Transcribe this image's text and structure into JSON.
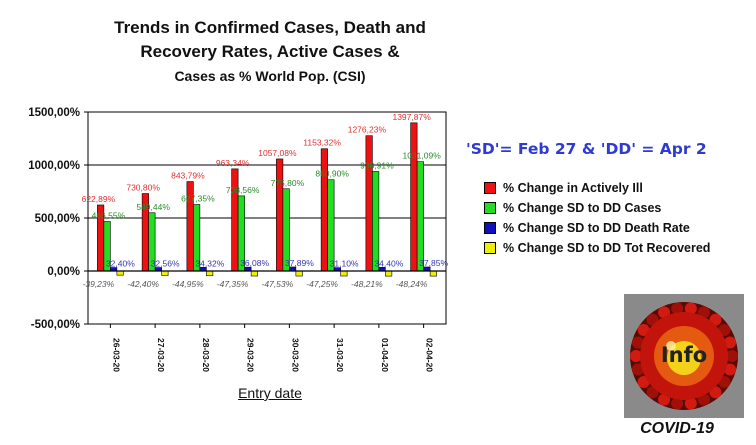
{
  "title": {
    "line1": "Trends in Confirmed Cases, Death and",
    "line2": "Recovery Rates, Active Cases &",
    "line3": "Cases as % World Pop. (CSI)"
  },
  "note": "'SD'= Feb 27 & 'DD' = Apr 2",
  "logo": {
    "text": "Info",
    "caption": "COVID-19"
  },
  "colors": {
    "active": "#ee1111",
    "cases": "#22dd22",
    "death": "#1111bb",
    "recovered": "#eeee00",
    "note": "#2e3bd0"
  },
  "chart_data": {
    "type": "bar",
    "xlabel": "Entry date",
    "ylabel": "",
    "ylim": [
      -500,
      1500
    ],
    "yticks": [
      -500,
      0,
      500,
      1000,
      1500
    ],
    "ytick_labels": [
      "-500,00%",
      "0,00%",
      "500,00%",
      "1000,00%",
      "1500,00%"
    ],
    "grid": true,
    "legend_position": "right",
    "categories": [
      "26-03-20",
      "27-03-20",
      "28-03-20",
      "29-03-20",
      "30-03-20",
      "31-03-20",
      "01-04-20",
      "02-04-20"
    ],
    "series": [
      {
        "name": "% Change in Actively Ill",
        "color": "#ee1111",
        "label_color": "#e03030",
        "values": [
          622.89,
          730.8,
          843.79,
          963.34,
          1057.08,
          1153.32,
          1276.23,
          1397.87
        ],
        "labels": [
          "622,89%",
          "730,80%",
          "843,79%",
          "963,34%",
          "1057,08%",
          "1153,32%",
          "1276,23%",
          "1397,87%"
        ]
      },
      {
        "name": "% Change SD to DD Cases",
        "color": "#22dd22",
        "label_color": "#2a8a2a",
        "values": [
          466.55,
          549.44,
          627.35,
          708.56,
          775.8,
          860.9,
          938.91,
          1031.09
        ],
        "labels": [
          "466,55%",
          "549,44%",
          "627,35%",
          "708,56%",
          "775,80%",
          "860,90%",
          "938,91%",
          "1031,09%"
        ]
      },
      {
        "name": "% Change SD to DD Death Rate",
        "color": "#1111bb",
        "label_color": "#3535b0",
        "values": [
          32.4,
          32.56,
          34.32,
          36.08,
          37.89,
          31.1,
          34.4,
          37.85
        ],
        "labels": [
          "32,40%",
          "32,56%",
          "34,32%",
          "36,08%",
          "37,89%",
          "31,10%",
          "34,40%",
          "37,85%"
        ]
      },
      {
        "name": "% Change SD to DD Tot Recovered",
        "color": "#eeee00",
        "label_color": "#555555",
        "values": [
          -39.23,
          -42.4,
          -44.95,
          -47.35,
          -47.53,
          -47.25,
          -48.21,
          -48.24
        ],
        "labels": [
          "-39,23%",
          "-42,40%",
          "-44,95%",
          "-47,35%",
          "-47,53%",
          "-47,25%",
          "-48,21%",
          "-48,24%"
        ]
      }
    ]
  }
}
